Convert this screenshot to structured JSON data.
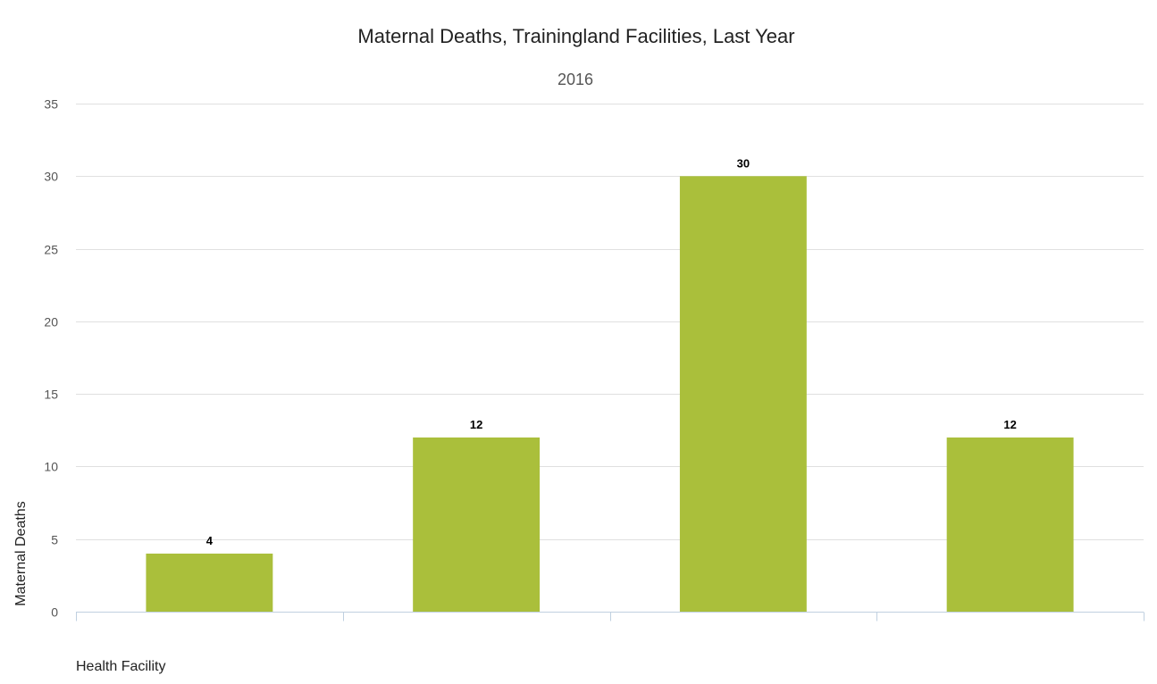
{
  "chart_data": {
    "type": "bar",
    "title": "Maternal Deaths, Trainingland Facilities, Last Year",
    "subtitle": "2016",
    "xlabel": "Health Facility",
    "ylabel": "Maternal Deaths",
    "categories": [
      "",
      "",
      "",
      ""
    ],
    "values": [
      4,
      12,
      30,
      12
    ],
    "ylim": [
      0,
      35
    ],
    "yticks": [
      0,
      5,
      10,
      15,
      20,
      25,
      30,
      35
    ],
    "bar_color": "#aabf3b",
    "grid": true,
    "legend": "none",
    "data_labels": true
  }
}
